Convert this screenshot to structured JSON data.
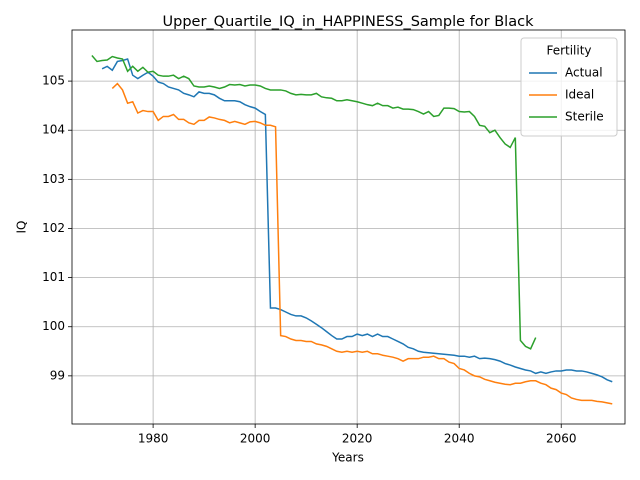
{
  "chart_data": {
    "type": "line",
    "title": "Upper_Quartile_IQ_in_HAPPINESS_Sample for Black",
    "x_label": "Years",
    "y_label": "IQ",
    "legend_title": "Fertility",
    "legend_loc": "upper right",
    "grid": true,
    "xlim": [
      1964.1,
      2072.5
    ],
    "ylim": [
      98.02,
      106.04
    ],
    "xticks": [
      1980,
      2000,
      2020,
      2040,
      2060
    ],
    "yticks": [
      99,
      100,
      101,
      102,
      103,
      104,
      105
    ],
    "series": [
      {
        "name": "Actual",
        "color": "#1f77b4",
        "x_start": 1970,
        "values": [
          105.25,
          105.3,
          105.22,
          105.4,
          105.42,
          105.45,
          105.12,
          105.05,
          105.12,
          105.18,
          105.1,
          104.98,
          104.95,
          104.88,
          104.85,
          104.82,
          104.75,
          104.72,
          104.68,
          104.78,
          104.75,
          104.75,
          104.72,
          104.65,
          104.6,
          104.6,
          104.6,
          104.58,
          104.52,
          104.48,
          104.45,
          104.38,
          104.32,
          100.38,
          100.38,
          100.35,
          100.3,
          100.25,
          100.22,
          100.22,
          100.18,
          100.12,
          100.05,
          99.98,
          99.9,
          99.82,
          99.75,
          99.75,
          99.8,
          99.8,
          99.85,
          99.82,
          99.85,
          99.8,
          99.85,
          99.8,
          99.8,
          99.75,
          99.7,
          99.65,
          99.58,
          99.55,
          99.5,
          99.48,
          99.47,
          99.46,
          99.45,
          99.44,
          99.43,
          99.42,
          99.4,
          99.4,
          99.38,
          99.4,
          99.35,
          99.36,
          99.35,
          99.33,
          99.3,
          99.25,
          99.22,
          99.18,
          99.15,
          99.12,
          99.1,
          99.05,
          99.08,
          99.05,
          99.08,
          99.1,
          99.1,
          99.12,
          99.12,
          99.1,
          99.1,
          99.08,
          99.05,
          99.02,
          98.98,
          98.92,
          98.88
        ]
      },
      {
        "name": "Ideal",
        "color": "#ff7f0e",
        "x_start": 1972,
        "values": [
          104.85,
          104.95,
          104.82,
          104.55,
          104.58,
          104.35,
          104.4,
          104.38,
          104.38,
          104.2,
          104.28,
          104.28,
          104.32,
          104.22,
          104.22,
          104.15,
          104.12,
          104.2,
          104.2,
          104.27,
          104.25,
          104.22,
          104.2,
          104.15,
          104.18,
          104.15,
          104.12,
          104.17,
          104.18,
          104.15,
          104.1,
          104.1,
          104.07,
          99.82,
          99.8,
          99.75,
          99.72,
          99.72,
          99.7,
          99.7,
          99.65,
          99.63,
          99.6,
          99.55,
          99.5,
          99.48,
          99.5,
          99.48,
          99.5,
          99.48,
          99.5,
          99.45,
          99.45,
          99.42,
          99.4,
          99.38,
          99.35,
          99.3,
          99.35,
          99.35,
          99.35,
          99.38,
          99.38,
          99.4,
          99.35,
          99.35,
          99.28,
          99.25,
          99.15,
          99.12,
          99.05,
          99.0,
          98.98,
          98.93,
          98.9,
          98.87,
          98.85,
          98.83,
          98.82,
          98.85,
          98.85,
          98.88,
          98.9,
          98.9,
          98.85,
          98.82,
          98.75,
          98.72,
          98.65,
          98.62,
          98.55,
          98.52,
          98.5,
          98.5,
          98.5,
          98.48,
          98.47,
          98.45,
          98.43
        ]
      },
      {
        "name": "Sterile",
        "color": "#2ca02c",
        "x_start": 1968,
        "values": [
          105.52,
          105.4,
          105.42,
          105.43,
          105.5,
          105.47,
          105.45,
          105.2,
          105.3,
          105.2,
          105.28,
          105.18,
          105.2,
          105.12,
          105.1,
          105.1,
          105.12,
          105.05,
          105.1,
          105.05,
          104.9,
          104.88,
          104.88,
          104.9,
          104.88,
          104.85,
          104.88,
          104.93,
          104.92,
          104.93,
          104.9,
          104.92,
          104.92,
          104.9,
          104.85,
          104.82,
          104.82,
          104.82,
          104.8,
          104.75,
          104.72,
          104.73,
          104.72,
          104.72,
          104.75,
          104.68,
          104.66,
          104.65,
          104.6,
          104.6,
          104.62,
          104.6,
          104.58,
          104.55,
          104.52,
          104.5,
          104.55,
          104.5,
          104.5,
          104.45,
          104.47,
          104.43,
          104.43,
          104.42,
          104.38,
          104.33,
          104.38,
          104.28,
          104.3,
          104.45,
          104.45,
          104.44,
          104.38,
          104.37,
          104.38,
          104.28,
          104.1,
          104.08,
          103.95,
          104.0,
          103.85,
          103.72,
          103.65,
          103.85,
          99.72,
          99.6,
          99.55,
          99.78
        ]
      }
    ]
  }
}
